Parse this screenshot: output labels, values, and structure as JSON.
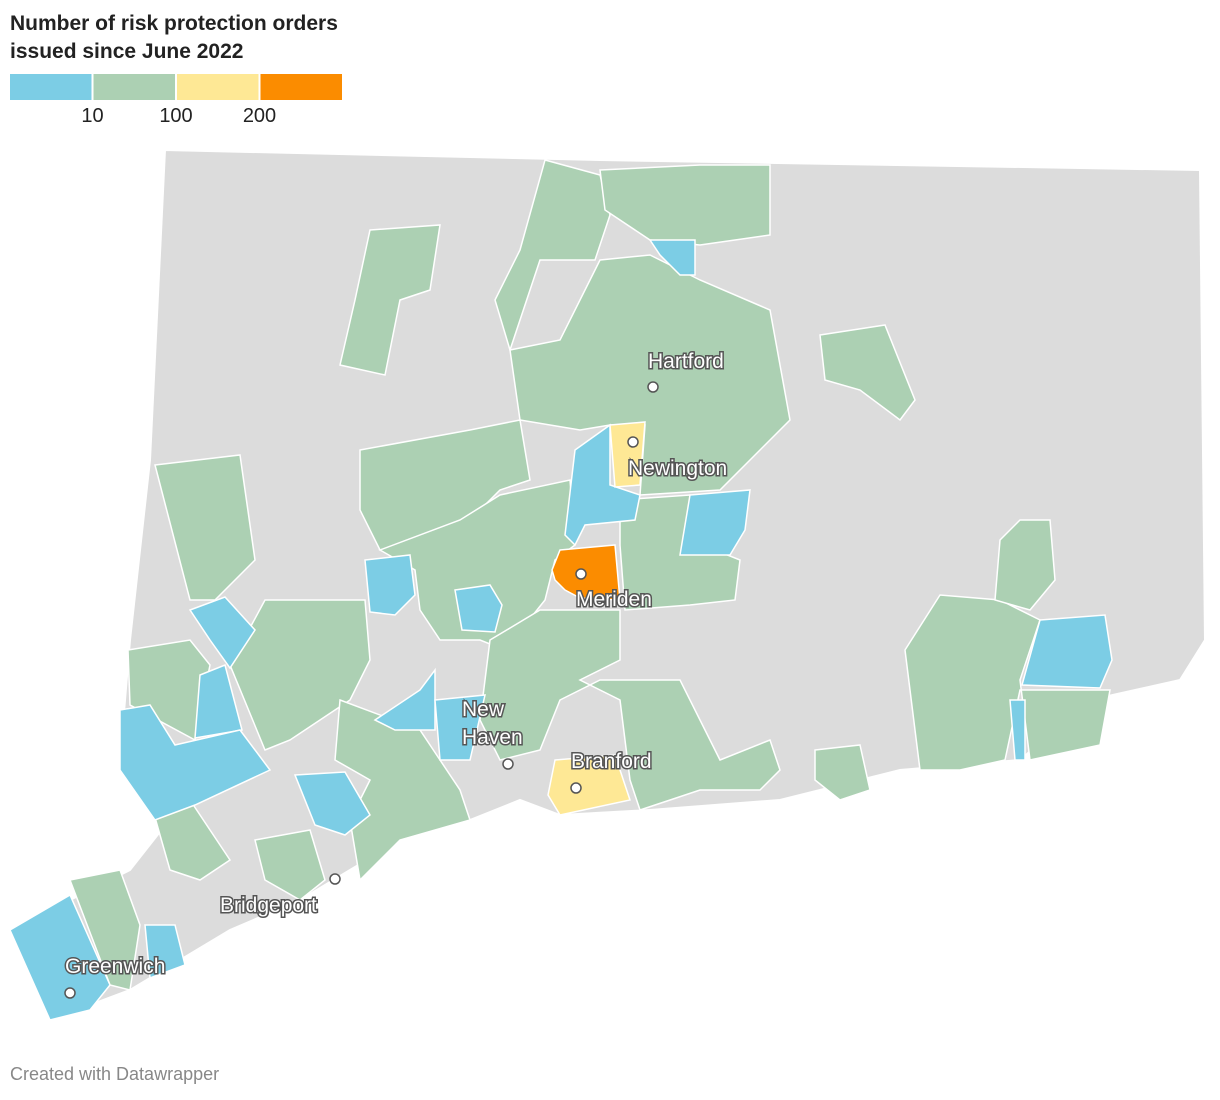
{
  "title": "Number of risk protection orders issued since June 2022",
  "legend": {
    "colors": [
      "#7ccde5",
      "#acd0b3",
      "#fee895",
      "#fb8c00"
    ],
    "thresholds": [
      10,
      100,
      200
    ]
  },
  "cities": [
    "Hartford",
    "Newington",
    "Meriden",
    "New Haven",
    "Branford",
    "Bridgeport",
    "Greenwich"
  ],
  "footer": "Created with Datawrapper"
}
